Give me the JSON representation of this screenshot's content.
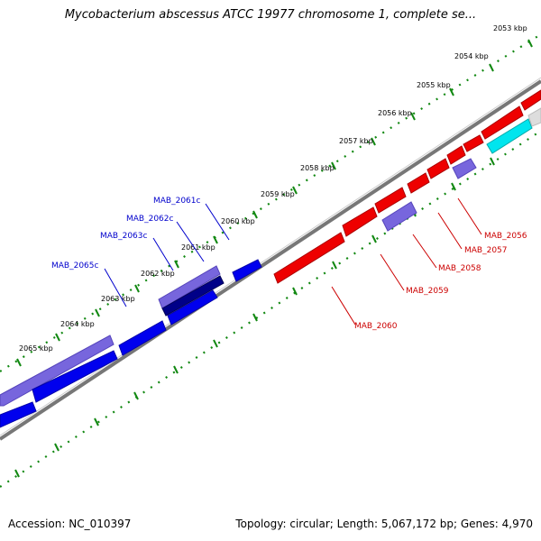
{
  "title": "Mycobacterium abscessus ATCC 19977 chromosome 1, complete se...",
  "footer": {
    "accession": "Accession: NC_010397",
    "summary": "Topology: circular; Length: 5,067,172 bp; Genes: 4,970"
  },
  "colors": {
    "forward_gene": "#0000ee",
    "forward_gene_light": "#7766dd",
    "reverse_gene": "#ee0000",
    "reverse_gene_light": "#7766dd",
    "highlight_gene": "#00e5ee",
    "backbone": "#888888",
    "ticks": "#118811"
  },
  "kbp_labels": [
    "2053 kbp",
    "2054 kbp",
    "2055 kbp",
    "2056 kbp",
    "2057 kbp",
    "2058 kbp",
    "2059 kbp",
    "2060 kbp",
    "2061 kbp",
    "2062 kbp",
    "2063 kbp",
    "2064 kbp",
    "2065 kbp"
  ],
  "gene_labels_blue": [
    "MAB_2061c",
    "MAB_2062c",
    "MAB_2063c",
    "MAB_2065c"
  ],
  "gene_labels_red": [
    "MAB_2056",
    "MAB_2057",
    "MAB_2058",
    "MAB_2059",
    "MAB_2060"
  ]
}
